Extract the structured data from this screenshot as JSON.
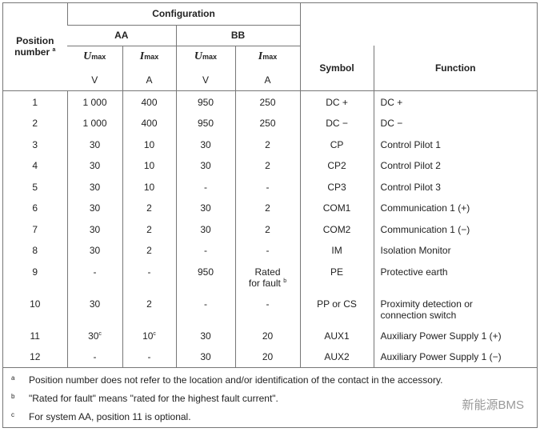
{
  "header": {
    "position": "Position",
    "number": "number",
    "position_note": "a",
    "configuration": "Configuration",
    "aa": "AA",
    "bb": "BB",
    "u": "U",
    "i": "I",
    "max": "max",
    "v_unit": "V",
    "a_unit": "A",
    "symbol": "Symbol",
    "function": "Function"
  },
  "rows": [
    {
      "pos": "1",
      "aa_u": "1 000",
      "aa_i": "400",
      "bb_u": "950",
      "bb_i": "250",
      "symbol": "DC +",
      "function": "DC +"
    },
    {
      "pos": "2",
      "aa_u": "1 000",
      "aa_i": "400",
      "bb_u": "950",
      "bb_i": "250",
      "symbol": "DC −",
      "function": "DC −"
    },
    {
      "pos": "3",
      "aa_u": "30",
      "aa_i": "10",
      "bb_u": "30",
      "bb_i": "2",
      "symbol": "CP",
      "function": "Control Pilot 1"
    },
    {
      "pos": "4",
      "aa_u": "30",
      "aa_i": "10",
      "bb_u": "30",
      "bb_i": "2",
      "symbol": "CP2",
      "function": "Control Pilot 2"
    },
    {
      "pos": "5",
      "aa_u": "30",
      "aa_i": "10",
      "bb_u": "-",
      "bb_i": "-",
      "symbol": "CP3",
      "function": "Control Pilot 3"
    },
    {
      "pos": "6",
      "aa_u": "30",
      "aa_i": "2",
      "bb_u": "30",
      "bb_i": "2",
      "symbol": "COM1",
      "function": "Communication 1 (+)"
    },
    {
      "pos": "7",
      "aa_u": "30",
      "aa_i": "2",
      "bb_u": "30",
      "bb_i": "2",
      "symbol": "COM2",
      "function": "Communication 1 (−)"
    },
    {
      "pos": "8",
      "aa_u": "30",
      "aa_i": "2",
      "bb_u": "-",
      "bb_i": "-",
      "symbol": "IM",
      "function": "Isolation Monitor"
    },
    {
      "pos": "9",
      "aa_u": "-",
      "aa_i": "-",
      "bb_u": "950",
      "bb_i": "Rated",
      "bb_i2": "for fault",
      "bb_i_note": "b",
      "symbol": "PE",
      "function": "Protective earth"
    },
    {
      "pos": "10",
      "aa_u": "30",
      "aa_i": "2",
      "bb_u": "-",
      "bb_i": "-",
      "symbol": "PP or CS",
      "function": "Proximity detection or",
      "function2": "connection switch"
    },
    {
      "pos": "11",
      "aa_u": "30",
      "aa_u_note": "c",
      "aa_i": "10",
      "aa_i_note": "c",
      "bb_u": "30",
      "bb_i": "20",
      "symbol": "AUX1",
      "function": "Auxiliary Power Supply 1 (+)"
    },
    {
      "pos": "12",
      "aa_u": "-",
      "aa_i": "-",
      "bb_u": "30",
      "bb_i": "20",
      "symbol": "AUX2",
      "function": "Auxiliary Power Supply 1 (−)"
    }
  ],
  "footnotes": [
    {
      "mark": "a",
      "text": "Position number does not refer to the location and/or identification of the contact in the accessory."
    },
    {
      "mark": "b",
      "text": "\"Rated for fault\" means \"rated for the highest fault current\"."
    },
    {
      "mark": "c",
      "text": "For system AA, position 11 is optional."
    }
  ],
  "watermark": "新能源BMS"
}
